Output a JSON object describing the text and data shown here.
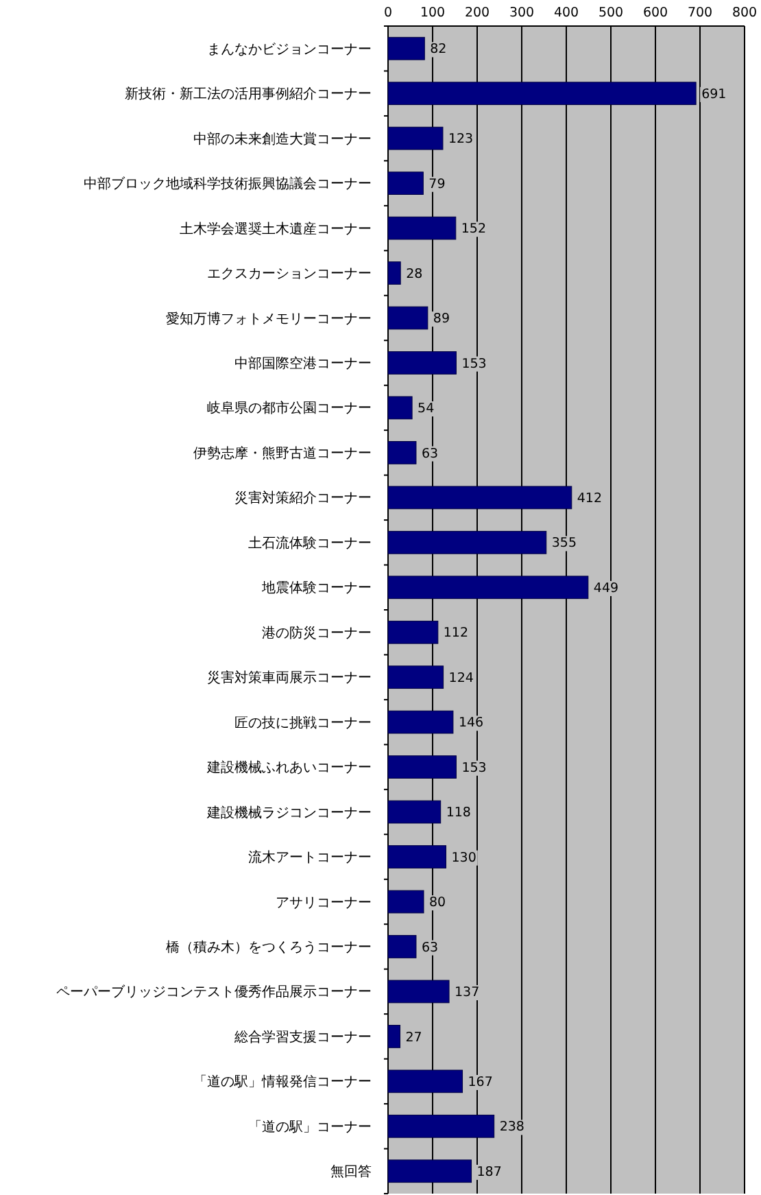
{
  "chart_data": {
    "type": "bar",
    "orientation": "horizontal",
    "categories": [
      "まんなかビジョンコーナー",
      "新技術・新工法の活用事例紹介コーナー",
      "中部の未来創造大賞コーナー",
      "中部ブロック地域科学技術振興協議会コーナー",
      "土木学会選奨土木遺産コーナー",
      "エクスカーションコーナー",
      "愛知万博フォトメモリーコーナー",
      "中部国際空港コーナー",
      "岐阜県の都市公園コーナー",
      "伊勢志摩・熊野古道コーナー",
      "災害対策紹介コーナー",
      "土石流体験コーナー",
      "地震体験コーナー",
      "港の防災コーナー",
      "災害対策車両展示コーナー",
      "匠の技に挑戦コーナー",
      "建設機械ふれあいコーナー",
      "建設機械ラジコンコーナー",
      "流木アートコーナー",
      "アサリコーナー",
      "橋（積み木）をつくろうコーナー",
      "ペーパーブリッジコンテスト優秀作品展示コーナー",
      "総合学習支援コーナー",
      "「道の駅」情報発信コーナー",
      "「道の駅」コーナー",
      "無回答"
    ],
    "values": [
      82,
      691,
      123,
      79,
      152,
      28,
      89,
      153,
      54,
      63,
      412,
      355,
      449,
      112,
      124,
      146,
      153,
      118,
      130,
      80,
      63,
      137,
      27,
      167,
      238,
      187
    ],
    "color": "#000080",
    "xlim": [
      0,
      800
    ],
    "xticks": [
      0,
      100,
      200,
      300,
      400,
      500,
      600,
      700,
      800
    ],
    "grid": "x",
    "data_labels": true
  }
}
